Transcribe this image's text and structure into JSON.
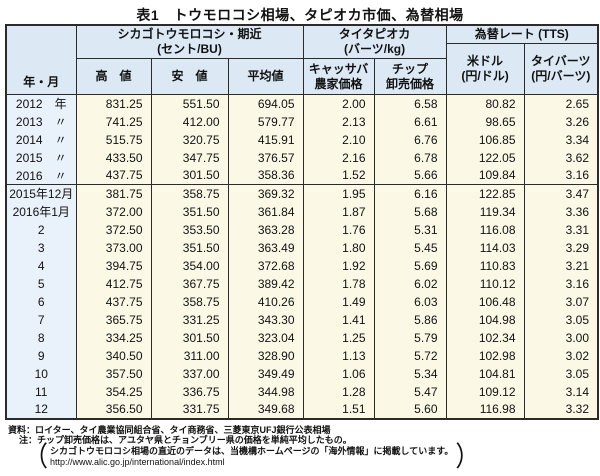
{
  "title": "表1　トウモロコシ相場、タピオカ市価、為替相場",
  "colors": {
    "header_bg": "#dce9f5",
    "year_col_bg": "#e9f1fa",
    "data_bg": "#fbf9e6",
    "border": "#2b2b2b"
  },
  "table": {
    "header": {
      "year_month": "年・月",
      "corn": {
        "name": "シカゴトウモロコシ・期近",
        "unit": "(セント/BU)",
        "high": "高　値",
        "low": "安　値",
        "avg": "平均値"
      },
      "tapioca": {
        "name": "タイタピオカ",
        "unit": "(バーツ/kg)",
        "cassava_l1": "キャッサバ",
        "cassava_l2": "農家価格",
        "chip_l1": "チップ",
        "chip_l2": "卸売価格"
      },
      "fx": {
        "name": "為替レート (TTS)",
        "usd_l1": "米ドル",
        "usd_l2": "(円/ドル)",
        "baht_l1": "タイバーツ",
        "baht_l2": "(円/バーツ)"
      }
    },
    "rows": [
      {
        "label": "2012　年",
        "values": [
          "831.25",
          "551.50",
          "694.05",
          "2.00",
          "6.58",
          "80.82",
          "2.65"
        ]
      },
      {
        "label": "2013　〃",
        "values": [
          "741.25",
          "412.00",
          "579.77",
          "2.13",
          "6.61",
          "98.65",
          "3.26"
        ]
      },
      {
        "label": "2014　〃",
        "values": [
          "515.75",
          "320.75",
          "415.91",
          "2.10",
          "6.76",
          "106.85",
          "3.34"
        ]
      },
      {
        "label": "2015　〃",
        "values": [
          "433.50",
          "347.75",
          "376.57",
          "2.16",
          "6.78",
          "122.05",
          "3.62"
        ]
      },
      {
        "label": "2016　〃",
        "values": [
          "437.75",
          "301.50",
          "358.36",
          "1.52",
          "5.66",
          "109.84",
          "3.16"
        ]
      },
      {
        "label": "2015年12月",
        "values": [
          "381.75",
          "358.75",
          "369.32",
          "1.95",
          "6.16",
          "122.85",
          "3.47"
        ],
        "section_start": true
      },
      {
        "label": "2016年1月",
        "values": [
          "372.00",
          "351.50",
          "361.84",
          "1.87",
          "5.68",
          "119.34",
          "3.36"
        ]
      },
      {
        "label": "2",
        "values": [
          "372.50",
          "353.50",
          "363.28",
          "1.76",
          "5.31",
          "116.08",
          "3.31"
        ]
      },
      {
        "label": "3",
        "values": [
          "373.00",
          "351.50",
          "363.49",
          "1.80",
          "5.45",
          "114.03",
          "3.29"
        ]
      },
      {
        "label": "4",
        "values": [
          "394.75",
          "354.00",
          "372.68",
          "1.92",
          "5.69",
          "110.83",
          "3.21"
        ]
      },
      {
        "label": "5",
        "values": [
          "412.75",
          "367.75",
          "389.42",
          "1.78",
          "6.02",
          "110.12",
          "3.16"
        ]
      },
      {
        "label": "6",
        "values": [
          "437.75",
          "358.75",
          "410.26",
          "1.49",
          "6.03",
          "106.48",
          "3.07"
        ]
      },
      {
        "label": "7",
        "values": [
          "365.75",
          "331.25",
          "343.30",
          "1.41",
          "5.86",
          "104.98",
          "3.05"
        ]
      },
      {
        "label": "8",
        "values": [
          "334.25",
          "301.50",
          "323.04",
          "1.25",
          "5.79",
          "102.34",
          "3.00"
        ]
      },
      {
        "label": "9",
        "values": [
          "340.50",
          "311.00",
          "328.90",
          "1.13",
          "5.72",
          "102.98",
          "3.02"
        ]
      },
      {
        "label": "10",
        "values": [
          "357.50",
          "337.00",
          "349.49",
          "1.06",
          "5.34",
          "104.81",
          "3.05"
        ]
      },
      {
        "label": "11",
        "values": [
          "354.25",
          "336.75",
          "344.98",
          "1.28",
          "5.47",
          "109.12",
          "3.14"
        ]
      },
      {
        "label": "12",
        "values": [
          "356.50",
          "331.75",
          "349.68",
          "1.51",
          "5.60",
          "116.98",
          "3.32"
        ]
      }
    ]
  },
  "notes": {
    "source": "資料：ロイター、タイ農業協同組合省、タイ商務省、三菱東京UFJ銀行公表相場",
    "note": "注：チップ卸売価格は、アユタヤ県とチョンブリー県の価格を単純平均したもの。",
    "paren_open": "（",
    "paren_close": "）",
    "paren_line1": "シカゴトウモロコシ相場の直近のデータは、当機構ホームページの「海外情報」に掲載しています。",
    "paren_line2": "http://www.alic.go.jp/international/index.html"
  }
}
